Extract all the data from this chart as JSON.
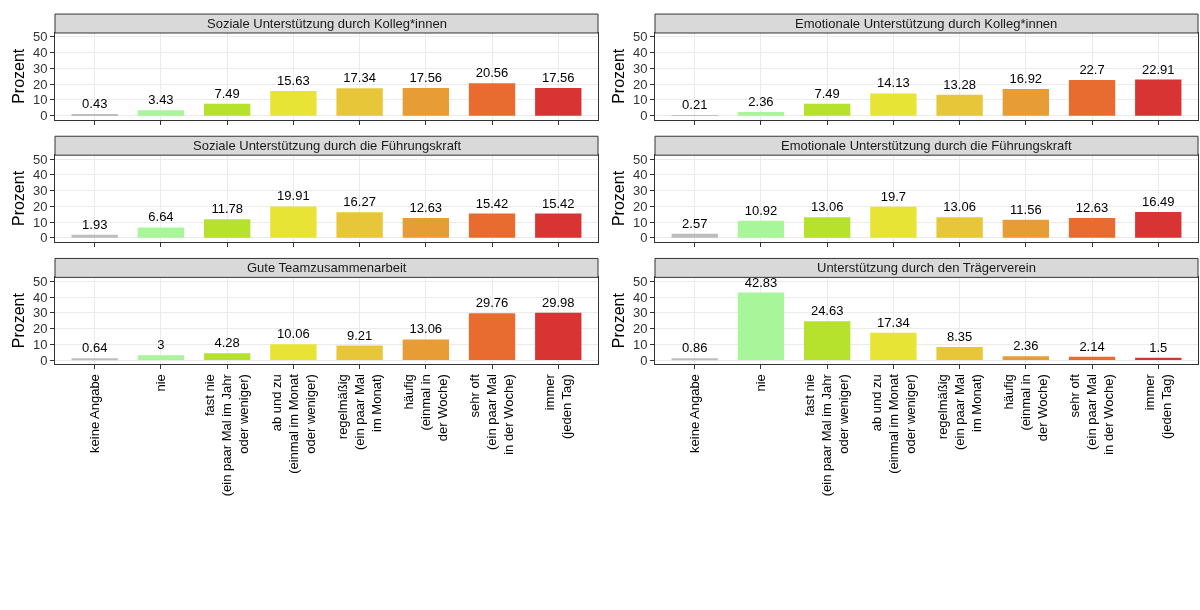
{
  "chart_data": [
    {
      "type": "bar",
      "title": "Soziale Unterstützung durch Kolleg*innen",
      "ylabel": "Prozent",
      "tick_labels": "y",
      "categories": [
        "keine Angabe",
        "nie",
        "fast nie\n(ein paar Mal im Jahr\noder weniger)",
        "ab und zu\n(einmal im Monat\noder weniger)",
        "regelmäßig\n(ein paar Mal\nim Monat)",
        "häufig\n(einmal in\nder Woche)",
        "sehr oft\n(ein paar Mal\nin der Woche)",
        "immer\n(jeden Tag)"
      ],
      "values": [
        0.43,
        3.43,
        7.49,
        15.63,
        17.34,
        17.56,
        20.56,
        17.56
      ],
      "colors": [
        "#bdbdbd",
        "#a8f59a",
        "#b6e22e",
        "#e8e436",
        "#e8c63a",
        "#e89c36",
        "#e86b30",
        "#d93434"
      ],
      "ylim": [
        -2.5,
        52.5
      ],
      "yticks": [
        0,
        10,
        20,
        30,
        40,
        50
      ],
      "data_labels": true,
      "grid": true
    },
    {
      "type": "bar",
      "title": "Emotionale Unterstützung durch Kolleg*innen",
      "ylabel": "Prozent",
      "tick_labels": "y",
      "categories": [
        "keine Angabe",
        "nie",
        "fast nie\n(ein paar Mal im Jahr\noder weniger)",
        "ab und zu\n(einmal im Monat\noder weniger)",
        "regelmäßig\n(ein paar Mal\nim Monat)",
        "häufig\n(einmal in\nder Woche)",
        "sehr oft\n(ein paar Mal\nin der Woche)",
        "immer\n(jeden Tag)"
      ],
      "values": [
        0.21,
        2.36,
        7.49,
        14.13,
        13.28,
        16.92,
        22.7,
        22.91
      ],
      "colors": [
        "#bdbdbd",
        "#a8f59a",
        "#b6e22e",
        "#e8e436",
        "#e8c63a",
        "#e89c36",
        "#e86b30",
        "#d93434"
      ],
      "ylim": [
        -2.5,
        52.5
      ],
      "yticks": [
        0,
        10,
        20,
        30,
        40,
        50
      ],
      "data_labels": true,
      "grid": true
    },
    {
      "type": "bar",
      "title": "Soziale Unterstützung durch die Führungskraft",
      "ylabel": "Prozent",
      "tick_labels": "y",
      "categories": [
        "keine Angabe",
        "nie",
        "fast nie\n(ein paar Mal im Jahr\noder weniger)",
        "ab und zu\n(einmal im Monat\noder weniger)",
        "regelmäßig\n(ein paar Mal\nim Monat)",
        "häufig\n(einmal in\nder Woche)",
        "sehr oft\n(ein paar Mal\nin der Woche)",
        "immer\n(jeden Tag)"
      ],
      "values": [
        1.93,
        6.64,
        11.78,
        19.91,
        16.27,
        12.63,
        15.42,
        15.42
      ],
      "colors": [
        "#bdbdbd",
        "#a8f59a",
        "#b6e22e",
        "#e8e436",
        "#e8c63a",
        "#e89c36",
        "#e86b30",
        "#d93434"
      ],
      "ylim": [
        -2.5,
        52.5
      ],
      "yticks": [
        0,
        10,
        20,
        30,
        40,
        50
      ],
      "data_labels": true,
      "grid": true
    },
    {
      "type": "bar",
      "title": "Emotionale Unterstützung durch die Führungskraft",
      "ylabel": "Prozent",
      "tick_labels": "y",
      "categories": [
        "keine Angabe",
        "nie",
        "fast nie\n(ein paar Mal im Jahr\noder weniger)",
        "ab und zu\n(einmal im Monat\noder weniger)",
        "regelmäßig\n(ein paar Mal\nim Monat)",
        "häufig\n(einmal in\nder Woche)",
        "sehr oft\n(ein paar Mal\nin der Woche)",
        "immer\n(jeden Tag)"
      ],
      "values": [
        2.57,
        10.92,
        13.06,
        19.7,
        13.06,
        11.56,
        12.63,
        16.49
      ],
      "colors": [
        "#bdbdbd",
        "#a8f59a",
        "#b6e22e",
        "#e8e436",
        "#e8c63a",
        "#e89c36",
        "#e86b30",
        "#d93434"
      ],
      "ylim": [
        -2.5,
        52.5
      ],
      "yticks": [
        0,
        10,
        20,
        30,
        40,
        50
      ],
      "data_labels": true,
      "grid": true
    },
    {
      "type": "bar",
      "title": "Gute Teamzusammenarbeit",
      "ylabel": "Prozent",
      "categories": [
        "keine Angabe",
        "nie",
        "fast nie\n(ein paar Mal im Jahr\noder weniger)",
        "ab und zu\n(einmal im Monat\noder weniger)",
        "regelmäßig\n(ein paar Mal\nim Monat)",
        "häufig\n(einmal in\nder Woche)",
        "sehr oft\n(ein paar Mal\nin der Woche)",
        "immer\n(jeden Tag)"
      ],
      "values": [
        0.64,
        3,
        4.28,
        10.06,
        9.21,
        13.06,
        29.76,
        29.98
      ],
      "colors": [
        "#bdbdbd",
        "#a8f59a",
        "#b6e22e",
        "#e8e436",
        "#e8c63a",
        "#e89c36",
        "#e86b30",
        "#d93434"
      ],
      "ylim": [
        -2.5,
        52.5
      ],
      "yticks": [
        0,
        10,
        20,
        30,
        40,
        50
      ],
      "data_labels": true,
      "grid": true
    },
    {
      "type": "bar",
      "title": "Unterstützung durch den Trägerverein",
      "ylabel": "Prozent",
      "categories": [
        "keine Angabe",
        "nie",
        "fast nie\n(ein paar Mal im Jahr\noder weniger)",
        "ab und zu\n(einmal im Monat\noder weniger)",
        "regelmäßig\n(ein paar Mal\nim Monat)",
        "häufig\n(einmal in\nder Woche)",
        "sehr oft\n(ein paar Mal\nin der Woche)",
        "immer\n(jeden Tag)"
      ],
      "values": [
        0.86,
        42.83,
        24.63,
        17.34,
        8.35,
        2.36,
        2.14,
        1.5
      ],
      "colors": [
        "#bdbdbd",
        "#a8f59a",
        "#b6e22e",
        "#e8e436",
        "#e8c63a",
        "#e89c36",
        "#e86b30",
        "#d93434"
      ],
      "ylim": [
        -2.5,
        52.5
      ],
      "yticks": [
        0,
        10,
        20,
        30,
        40,
        50
      ],
      "data_labels": true,
      "grid": true
    }
  ]
}
